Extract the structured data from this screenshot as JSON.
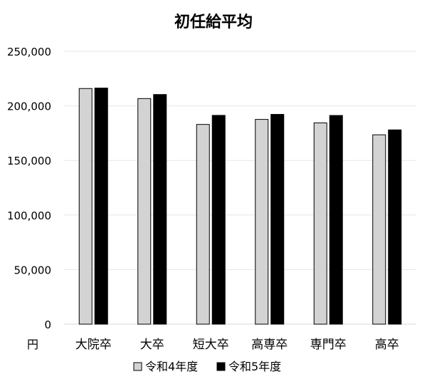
{
  "chart_data": {
    "type": "bar",
    "title": "初任給平均",
    "xlabel": "",
    "ylabel": "",
    "y_unit_label": "円",
    "categories": [
      "大院卒",
      "大卒",
      "短大卒",
      "高専卒",
      "専門卒",
      "高卒"
    ],
    "series": [
      {
        "name": "令和4年度",
        "color": "#d3d3d3",
        "values": [
          215900,
          206700,
          183000,
          187600,
          184400,
          173500
        ]
      },
      {
        "name": "令和5年度",
        "color": "#000000",
        "values": [
          216300,
          210400,
          191300,
          192200,
          191200,
          178000
        ]
      }
    ],
    "ylim": [
      0,
      250000
    ],
    "yticks": [
      0,
      50000,
      100000,
      150000,
      200000,
      250000
    ],
    "ytick_labels": [
      "0",
      "50,000",
      "100,000",
      "150,000",
      "200,000",
      "250,000"
    ],
    "grid": true,
    "legend_position": "bottom"
  }
}
